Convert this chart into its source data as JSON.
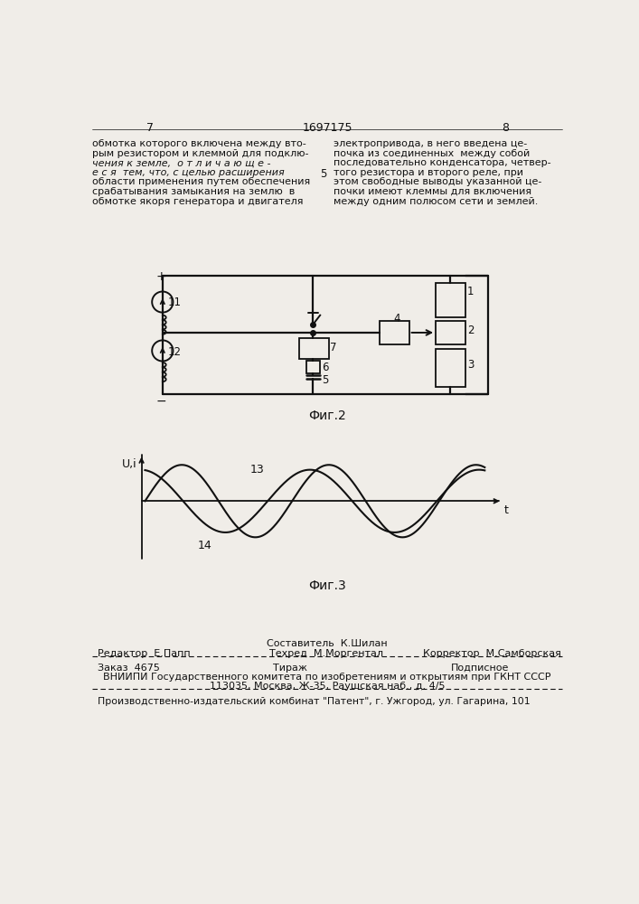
{
  "page_number_left": "7",
  "patent_number": "1697175",
  "page_number_right": "8",
  "text_left_lines": [
    "обмотка которого включена между вто-",
    "рым резистором и клеммой для подклю-",
    "чения к земле,  о т л и ч а ю щ е -",
    "е с я  тем, что, с целью расширения",
    "области применения путем обеспечения",
    "срабатывания замыкания на землю  в",
    "обмотке якоря генератора и двигателя"
  ],
  "line_number_5": "5",
  "text_right_lines": [
    "электропривода, в него введена це-",
    "почка из соединенных  между собой",
    "последовательно конденсатора, четвер-",
    "того резистора и второго реле, при",
    "этом свободные выводы указанной це-",
    "почки имеют клеммы для включения",
    "между одним полюсом сети и землей."
  ],
  "fig2_caption": "Фиг.2",
  "fig3_caption": "Фиг.3",
  "editor_label": "Редактор  Е.Папп",
  "compiler_label": "Составитель  К.Шилан",
  "tech_label": "Техред  М.Моргентал",
  "corrector_label": "Корректор  М.Самборская",
  "order_label": "Заказ  4675",
  "edition_label": "Тираж",
  "subscription_label": "Подписное",
  "vniip_line1": "ВНИИПИ Государственного комитета по изобретениям и открытиям при ГКНТ СССР",
  "vniip_line2": "113035, Москва, Ж-35, Раушская наб., д. 4/5",
  "plant_line": "Производственно-издательский комбинат \"Патент\", г. Ужгород, ул. Гагарина, 101",
  "bg_color": "#f0ede8",
  "text_color": "#111111",
  "line_color": "#111111"
}
